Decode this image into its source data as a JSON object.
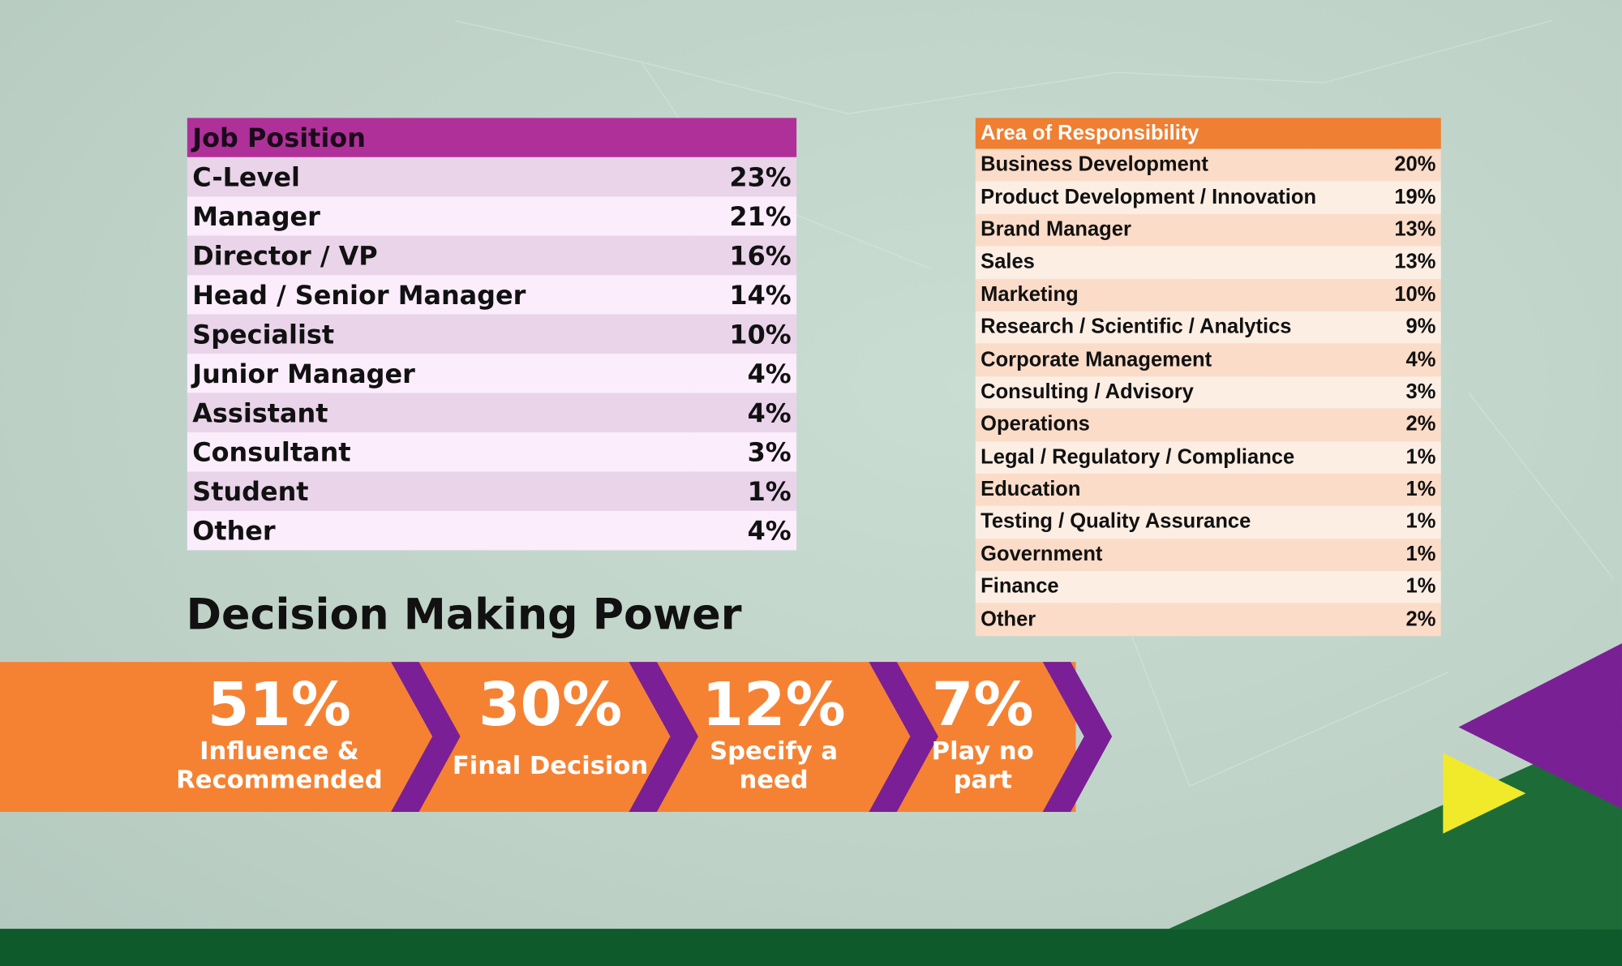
{
  "job_position": {
    "header": "Job Position",
    "rows": [
      [
        "C-Level",
        "23%"
      ],
      [
        "Manager",
        "21%"
      ],
      [
        "Director / VP",
        "16%"
      ],
      [
        "Head / Senior Manager",
        "14%"
      ],
      [
        "Specialist",
        "10%"
      ],
      [
        "Junior Manager",
        "4%"
      ],
      [
        "Assistant",
        "4%"
      ],
      [
        "Consultant",
        "3%"
      ],
      [
        "Student",
        "1%"
      ],
      [
        "Other",
        "4%"
      ]
    ]
  },
  "area_of_responsibility": {
    "header": "Area of Responsibility",
    "rows": [
      [
        "Business Development",
        "20%"
      ],
      [
        "Product Development / Innovation",
        "19%"
      ],
      [
        "Brand Manager",
        "13%"
      ],
      [
        "Sales",
        "13%"
      ],
      [
        "Marketing",
        "10%"
      ],
      [
        "Research / Scientific / Analytics",
        "9%"
      ],
      [
        "Corporate Management",
        "4%"
      ],
      [
        "Consulting / Advisory",
        "3%"
      ],
      [
        "Operations",
        "2%"
      ],
      [
        "Legal / Regulatory / Compliance",
        "1%"
      ],
      [
        "Education",
        "1%"
      ],
      [
        "Testing / Quality Assurance",
        "1%"
      ],
      [
        "Government",
        "1%"
      ],
      [
        "Finance",
        "1%"
      ],
      [
        "Other",
        "2%"
      ]
    ]
  },
  "decision_making": {
    "title": "Decision Making Power",
    "items": [
      {
        "value": "51%",
        "label": "Influence & Recommended"
      },
      {
        "value": "30%",
        "label": "Final Decision"
      },
      {
        "value": "12%",
        "label": "Specify a need"
      },
      {
        "value": "7%",
        "label": "Play no part"
      }
    ]
  }
}
